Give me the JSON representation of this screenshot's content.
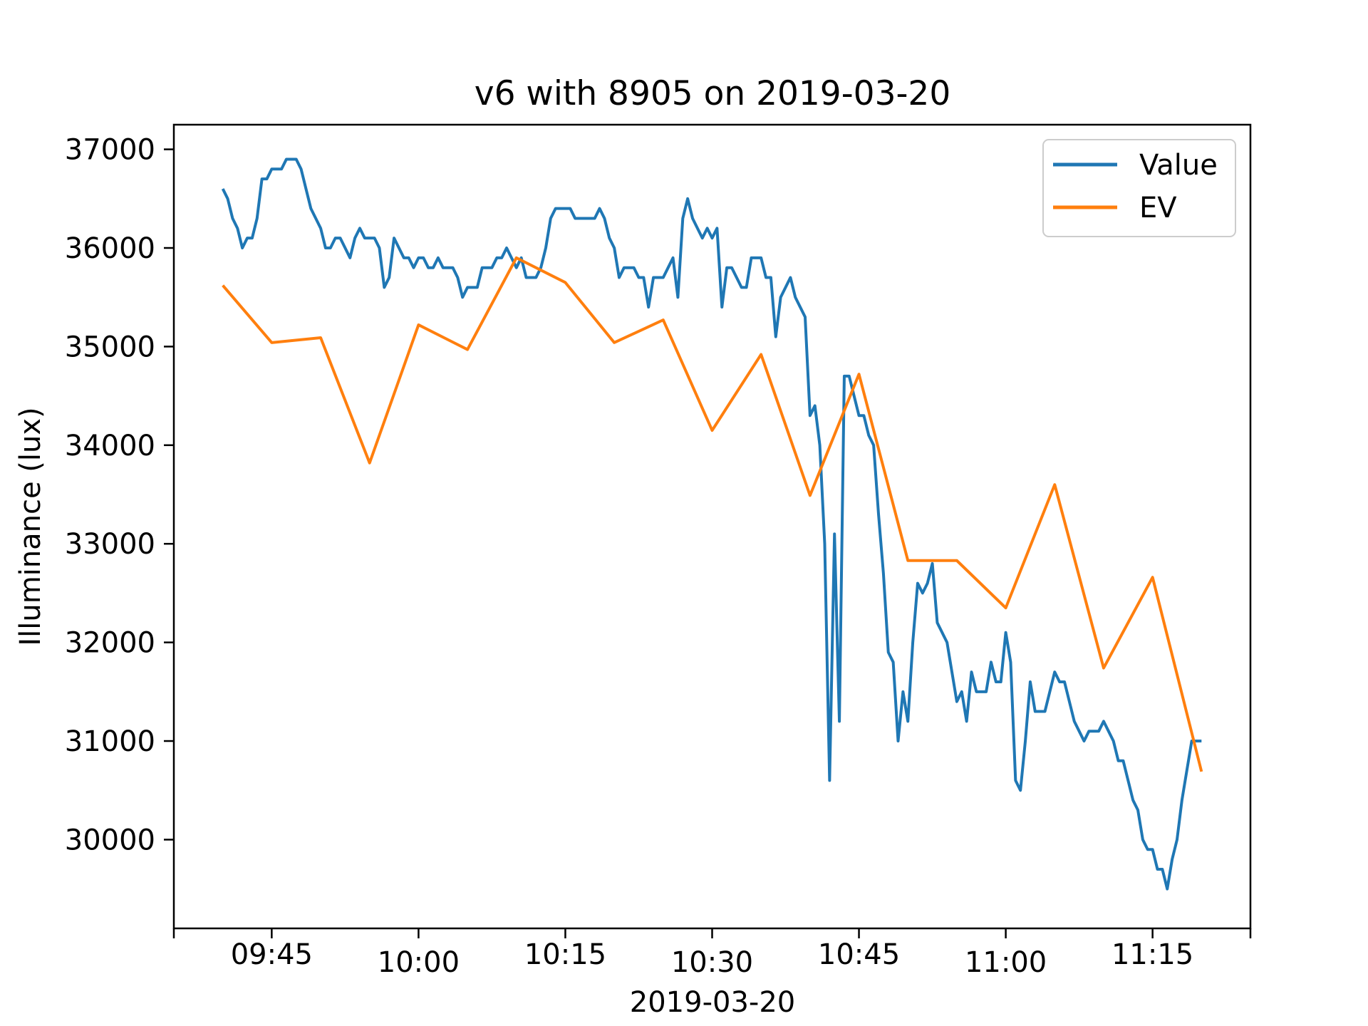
{
  "chart_data": {
    "type": "line",
    "title": "v6 with 8905 on 2019-03-20",
    "xlabel": "2019-03-20",
    "ylabel": "Illuminance (lux)",
    "xlim": [
      "09:35",
      "11:25"
    ],
    "ylim": [
      29100,
      37250
    ],
    "xticks": [
      "09:45",
      "10:00",
      "10:15",
      "10:30",
      "10:45",
      "11:00",
      "11:15"
    ],
    "yticks": [
      30000,
      31000,
      32000,
      33000,
      34000,
      35000,
      36000,
      37000
    ],
    "grid": false,
    "legend_position": "top-right",
    "series": [
      {
        "name": "Value",
        "color": "#1f77b4",
        "x": [
          "09:40",
          "09:40:30",
          "09:41",
          "09:41:30",
          "09:42",
          "09:42:30",
          "09:43",
          "09:43:30",
          "09:44",
          "09:44:30",
          "09:45",
          "09:45:30",
          "09:46",
          "09:46:30",
          "09:47",
          "09:47:30",
          "09:48",
          "09:48:30",
          "09:49",
          "09:49:30",
          "09:50",
          "09:50:30",
          "09:51",
          "09:51:30",
          "09:52",
          "09:52:30",
          "09:53",
          "09:53:30",
          "09:54",
          "09:54:30",
          "09:55",
          "09:55:30",
          "09:56",
          "09:56:30",
          "09:57",
          "09:57:30",
          "09:58",
          "09:58:30",
          "09:59",
          "09:59:30",
          "10:00",
          "10:00:30",
          "10:01",
          "10:01:30",
          "10:02",
          "10:02:30",
          "10:03",
          "10:03:30",
          "10:04",
          "10:04:30",
          "10:05",
          "10:05:30",
          "10:06",
          "10:06:30",
          "10:07",
          "10:07:30",
          "10:08",
          "10:08:30",
          "10:09",
          "10:09:30",
          "10:10",
          "10:10:30",
          "10:11",
          "10:11:30",
          "10:12",
          "10:12:30",
          "10:13",
          "10:13:30",
          "10:14",
          "10:14:30",
          "10:15",
          "10:15:30",
          "10:16",
          "10:16:30",
          "10:17",
          "10:17:30",
          "10:18",
          "10:18:30",
          "10:19",
          "10:19:30",
          "10:20",
          "10:20:30",
          "10:21",
          "10:21:30",
          "10:22",
          "10:22:30",
          "10:23",
          "10:23:30",
          "10:24",
          "10:24:30",
          "10:25",
          "10:25:30",
          "10:26",
          "10:26:30",
          "10:27",
          "10:27:30",
          "10:28",
          "10:28:30",
          "10:29",
          "10:29:30",
          "10:30",
          "10:30:30",
          "10:31",
          "10:31:30",
          "10:32",
          "10:32:30",
          "10:33",
          "10:33:30",
          "10:34",
          "10:34:30",
          "10:35",
          "10:35:30",
          "10:36",
          "10:36:30",
          "10:37",
          "10:37:30",
          "10:38",
          "10:38:30",
          "10:39",
          "10:39:30",
          "10:40",
          "10:40:30",
          "10:41",
          "10:41:30",
          "10:42",
          "10:42:30",
          "10:43",
          "10:43:30",
          "10:44",
          "10:44:30",
          "10:45",
          "10:45:30",
          "10:46",
          "10:46:30",
          "10:47",
          "10:47:30",
          "10:48",
          "10:48:30",
          "10:49",
          "10:49:30",
          "10:50",
          "10:50:30",
          "10:51",
          "10:51:30",
          "10:52",
          "10:52:30",
          "10:53",
          "10:53:30",
          "10:54",
          "10:54:30",
          "10:55",
          "10:55:30",
          "10:56",
          "10:56:30",
          "10:57",
          "10:57:30",
          "10:58",
          "10:58:30",
          "10:59",
          "10:59:30",
          "11:00",
          "11:00:30",
          "11:01",
          "11:01:30",
          "11:02",
          "11:02:30",
          "11:03",
          "11:03:30",
          "11:04",
          "11:04:30",
          "11:05",
          "11:05:30",
          "11:06",
          "11:06:30",
          "11:07",
          "11:07:30",
          "11:08",
          "11:08:30",
          "11:09",
          "11:09:30",
          "11:10",
          "11:10:30",
          "11:11",
          "11:11:30",
          "11:12",
          "11:12:30",
          "11:13",
          "11:13:30",
          "11:14",
          "11:14:30",
          "11:15",
          "11:15:30",
          "11:16",
          "11:16:30",
          "11:17",
          "11:17:30",
          "11:18",
          "11:18:30",
          "11:19",
          "11:19:30",
          "11:20"
        ],
        "y": [
          36600,
          36500,
          36300,
          36200,
          36000,
          36100,
          36100,
          36300,
          36700,
          36700,
          36800,
          36800,
          36800,
          36900,
          36900,
          36900,
          36800,
          36600,
          36400,
          36300,
          36200,
          36000,
          36000,
          36100,
          36100,
          36000,
          35900,
          36100,
          36200,
          36100,
          36100,
          36100,
          36000,
          35600,
          35700,
          36100,
          36000,
          35900,
          35900,
          35800,
          35900,
          35900,
          35800,
          35800,
          35900,
          35800,
          35800,
          35800,
          35700,
          35500,
          35600,
          35600,
          35600,
          35800,
          35800,
          35800,
          35900,
          35900,
          36000,
          35900,
          35800,
          35900,
          35700,
          35700,
          35700,
          35800,
          36000,
          36300,
          36400,
          36400,
          36400,
          36400,
          36300,
          36300,
          36300,
          36300,
          36300,
          36400,
          36300,
          36100,
          36000,
          35700,
          35800,
          35800,
          35800,
          35700,
          35700,
          35400,
          35700,
          35700,
          35700,
          35800,
          35900,
          35500,
          36300,
          36500,
          36300,
          36200,
          36100,
          36200,
          36100,
          36200,
          35400,
          35800,
          35800,
          35700,
          35600,
          35600,
          35900,
          35900,
          35900,
          35700,
          35700,
          35100,
          35500,
          35600,
          35700,
          35500,
          35400,
          35300,
          34300,
          34400,
          34000,
          33000,
          30600,
          33100,
          31200,
          34700,
          34700,
          34500,
          34300,
          34300,
          34100,
          34000,
          33300,
          32700,
          31900,
          31800,
          31000,
          31500,
          31200,
          32000,
          32600,
          32500,
          32600,
          32800,
          32200,
          32100,
          32000,
          31700,
          31400,
          31500,
          31200,
          31700,
          31500,
          31500,
          31500,
          31800,
          31600,
          31600,
          32100,
          31800,
          30600,
          30500,
          31000,
          31600,
          31300,
          31300,
          31300,
          31500,
          31700,
          31600,
          31600,
          31400,
          31200,
          31100,
          31000,
          31100,
          31100,
          31100,
          31200,
          31100,
          31000,
          30800,
          30800,
          30600,
          30400,
          30300,
          30000,
          29900,
          29900,
          29700,
          29700,
          29500,
          29800,
          30000,
          30400,
          30700,
          31000,
          31000,
          31000
        ]
      },
      {
        "name": "EV",
        "color": "#ff7f0e",
        "x": [
          "09:40",
          "09:45",
          "09:50",
          "09:55",
          "10:00",
          "10:05",
          "10:10",
          "10:15",
          "10:20",
          "10:25",
          "10:30",
          "10:35",
          "10:40",
          "10:45",
          "10:50",
          "10:55",
          "11:00",
          "11:05",
          "11:10",
          "11:15",
          "11:20"
        ],
        "y": [
          35620,
          35040,
          35090,
          33820,
          35220,
          34970,
          35900,
          35650,
          35040,
          35270,
          34150,
          34920,
          33490,
          34720,
          32830,
          32830,
          32350,
          33600,
          31740,
          32660,
          30690
        ]
      }
    ]
  }
}
